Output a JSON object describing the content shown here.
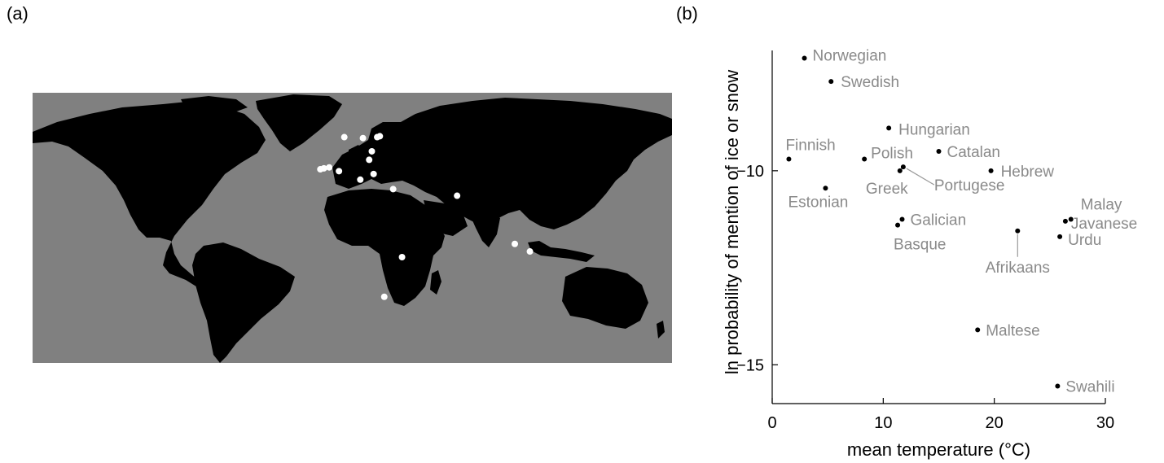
{
  "panels": {
    "a_label": "(a)",
    "b_label": "(b)"
  },
  "map": {
    "ocean_color": "#808080",
    "land_color": "#000000",
    "marker_color": "#ffffff",
    "markers": [
      {
        "lon": 5.5,
        "lat": 59.5
      },
      {
        "lon": 25.5,
        "lat": 60
      },
      {
        "lon": 24,
        "lat": 59.5
      },
      {
        "lon": 21,
        "lat": 52
      },
      {
        "lon": 16,
        "lat": 59
      },
      {
        "lon": 19.5,
        "lat": 47.5
      },
      {
        "lon": 22,
        "lat": 40
      },
      {
        "lon": 14.5,
        "lat": 37
      },
      {
        "lon": -8,
        "lat": 42.5
      },
      {
        "lon": -6,
        "lat": 43
      },
      {
        "lon": -3,
        "lat": 43.5
      },
      {
        "lon": 2.5,
        "lat": 41.5
      },
      {
        "lon": 33,
        "lat": 32
      },
      {
        "lon": 69,
        "lat": 28.5
      },
      {
        "lon": 38,
        "lat": -4
      },
      {
        "lon": 28,
        "lat": -25
      },
      {
        "lon": 101.5,
        "lat": 3
      },
      {
        "lon": 110,
        "lat": -1
      }
    ]
  },
  "chart_data": {
    "type": "scatter",
    "xlabel": "mean temperature (°C)",
    "ylabel": "ln probability of mention of ice or snow",
    "xlim": [
      0,
      30
    ],
    "ylim": [
      -16,
      -6.9
    ],
    "x_ticks": [
      "0",
      "10",
      "20",
      "30"
    ],
    "y_ticks": [
      "−10",
      "−15"
    ],
    "x_tick_values": [
      0,
      10,
      20,
      30
    ],
    "y_tick_values": [
      -10,
      -15
    ],
    "point_color": "#000000",
    "label_color": "#8a8a8a",
    "points": [
      {
        "name": "Norwegian",
        "x": 2.9,
        "y": -7.1
      },
      {
        "name": "Swedish",
        "x": 5.3,
        "y": -7.7
      },
      {
        "name": "Hungarian",
        "x": 10.5,
        "y": -8.9
      },
      {
        "name": "Finnish",
        "x": 1.5,
        "y": -9.7
      },
      {
        "name": "Polish",
        "x": 8.3,
        "y": -9.7
      },
      {
        "name": "Catalan",
        "x": 15.0,
        "y": -9.5
      },
      {
        "name": "Greek",
        "x": 11.5,
        "y": -10.0
      },
      {
        "name": "Portugese",
        "x": 11.8,
        "y": -9.9
      },
      {
        "name": "Hebrew",
        "x": 19.7,
        "y": -10.0
      },
      {
        "name": "Estonian",
        "x": 4.8,
        "y": -10.45
      },
      {
        "name": "Galician",
        "x": 11.7,
        "y": -11.25
      },
      {
        "name": "Basque",
        "x": 11.3,
        "y": -11.4
      },
      {
        "name": "Malay",
        "x": 26.9,
        "y": -11.25
      },
      {
        "name": "Javanese",
        "x": 26.4,
        "y": -11.3
      },
      {
        "name": "Afrikaans",
        "x": 22.1,
        "y": -11.55
      },
      {
        "name": "Urdu",
        "x": 25.9,
        "y": -11.7
      },
      {
        "name": "Maltese",
        "x": 18.5,
        "y": -14.1
      },
      {
        "name": "Swahili",
        "x": 25.7,
        "y": -15.55
      }
    ]
  }
}
